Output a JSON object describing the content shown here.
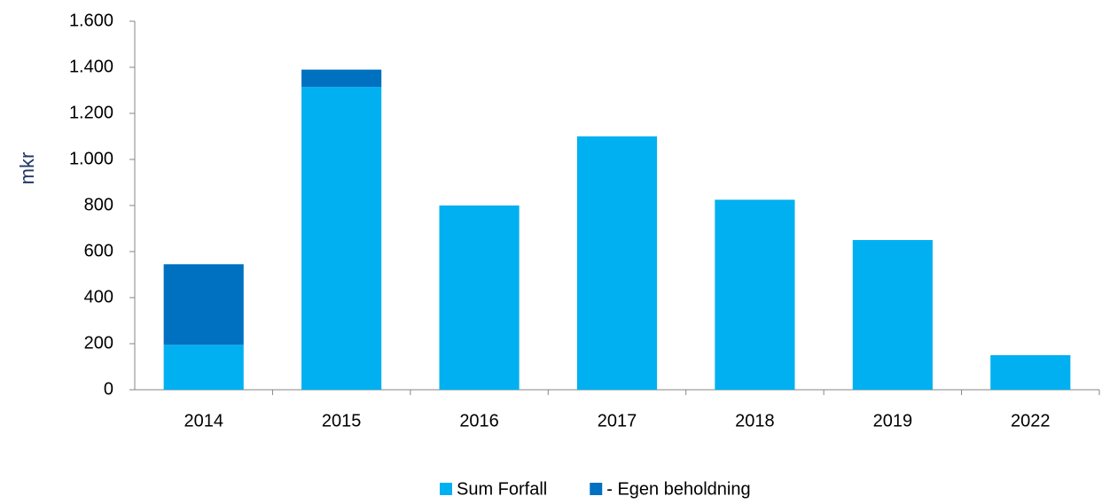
{
  "chart_data": {
    "type": "stacked_bar",
    "ylabel": "mkr",
    "categories": [
      "2014",
      "2015",
      "2016",
      "2017",
      "2018",
      "2019",
      "2022"
    ],
    "series": [
      {
        "name": "Sum Forfall",
        "color": "#00b0f0",
        "values": [
          195,
          1315,
          800,
          1100,
          825,
          650,
          150
        ]
      },
      {
        "name": "- Egen beholdning",
        "color": "#0070c0",
        "values": [
          350,
          75,
          null,
          null,
          null,
          null,
          null
        ]
      }
    ],
    "ylim": [
      0,
      1600
    ],
    "yticks": [
      0,
      200,
      400,
      600,
      800,
      {
        "value": 1000,
        "label": "1.000"
      },
      {
        "value": 1200,
        "label": "1.200"
      },
      {
        "value": 1400,
        "label": "1.400"
      },
      {
        "value": 1600,
        "label": "1.600"
      }
    ],
    "legend": "bottom"
  }
}
